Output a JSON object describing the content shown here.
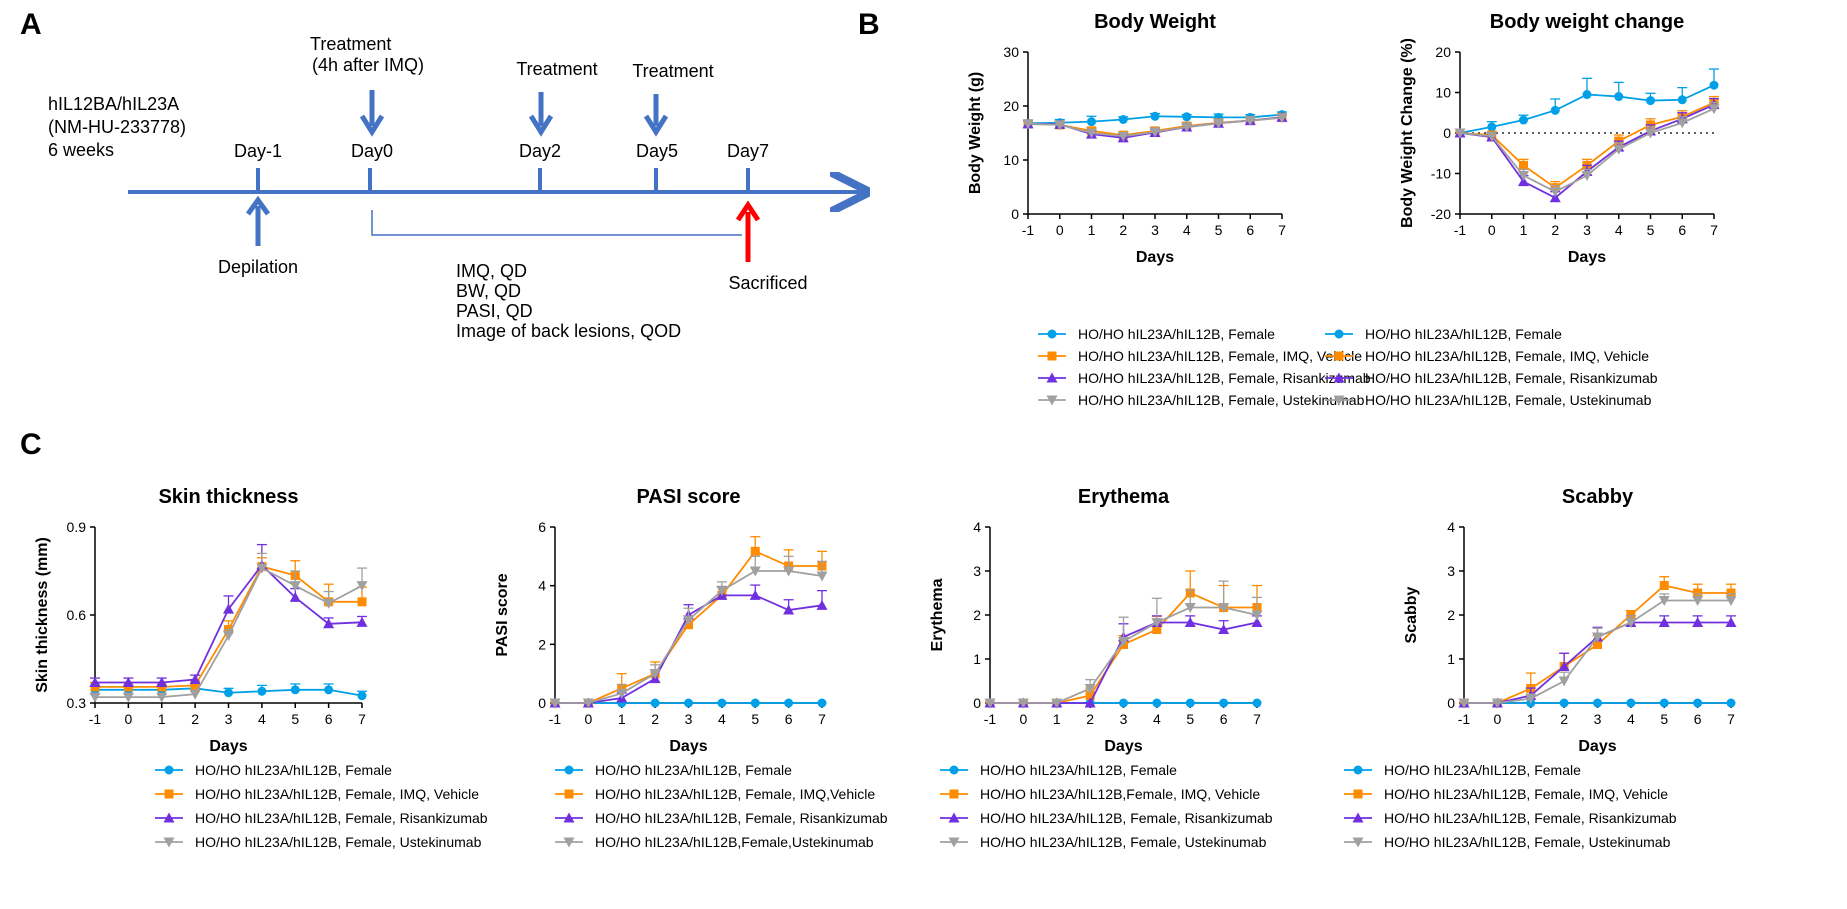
{
  "colors": {
    "timeline_blue": "#4472c4",
    "sacrificed_red": "#ff0000",
    "series": [
      "#00a0e9",
      "#ff8c00",
      "#7030e0",
      "#a0a0a0"
    ]
  },
  "markers": [
    "circle",
    "square",
    "triangle-up",
    "triangle-down"
  ],
  "panel_a": {
    "letter": "A",
    "model_lines": [
      "hIL12BA/hIL23A",
      "(NM-HU-233778)",
      "6 weeks"
    ],
    "days": [
      "Day-1",
      "Day0",
      "Day2",
      "Day5",
      "Day7"
    ],
    "treatments": [
      {
        "lines": [
          "Treatment",
          " (4h after IMQ)"
        ]
      },
      {
        "lines": [
          "Treatment"
        ]
      },
      {
        "lines": [
          "Treatment"
        ]
      }
    ],
    "depilation": "Depilation",
    "sacrificed": "Sacrificed",
    "protocol": [
      "IMQ, QD",
      "BW, QD",
      "PASI, QD",
      "Image of back lesions, QOD"
    ]
  },
  "panel_b_letter": "B",
  "panel_c_letter": "C",
  "chart_data": [
    {
      "type": "line",
      "title": "Body Weight",
      "xlabel": "Days",
      "ylabel": "Body Weight (g)",
      "x": [
        -1,
        0,
        1,
        2,
        3,
        4,
        5,
        6,
        7
      ],
      "xticks": [
        "-1",
        "0",
        "1",
        "2",
        "3",
        "4",
        "5",
        "6",
        "7"
      ],
      "ylim": [
        0,
        30
      ],
      "yticks": [
        "0",
        "10",
        "20",
        "30"
      ],
      "yticks_vals": [
        0,
        10,
        20,
        30
      ],
      "zero_line": false,
      "legend": "below",
      "series": [
        {
          "name": "HO/HO hIL23A/hIL12B, Female",
          "values": [
            16.8,
            16.9,
            17.1,
            17.5,
            18.1,
            18.0,
            17.9,
            17.9,
            18.4
          ],
          "err": [
            0.6,
            0.6,
            1.0,
            0.5,
            0.5,
            0.4,
            0.6,
            0.5,
            0.5
          ]
        },
        {
          "name": "HO/HO hIL23A/hIL12B, Female, IMQ, Vehicle",
          "values": [
            16.7,
            16.5,
            15.4,
            14.6,
            15.4,
            16.3,
            16.9,
            17.3,
            17.9
          ],
          "err": [
            0.5,
            0.5,
            0.6,
            0.6,
            0.6,
            0.5,
            0.5,
            0.5,
            0.5
          ]
        },
        {
          "name": "HO/HO hIL23A/hIL12B, Female, Risankizumab",
          "values": [
            16.7,
            16.6,
            14.8,
            14.1,
            15.1,
            16.1,
            16.8,
            17.3,
            17.9
          ],
          "err": [
            0.5,
            0.5,
            0.6,
            0.6,
            0.6,
            0.5,
            0.5,
            0.5,
            0.5
          ]
        },
        {
          "name": "HO/HO hIL23A/hIL12B, Female, Ustekinumab",
          "values": [
            16.7,
            16.5,
            15.0,
            14.4,
            15.2,
            16.1,
            16.8,
            17.3,
            17.8
          ],
          "err": [
            0.5,
            0.5,
            0.6,
            0.6,
            0.6,
            0.5,
            0.5,
            0.5,
            0.5
          ]
        }
      ]
    },
    {
      "type": "line",
      "title": "Body weight change",
      "xlabel": "Days",
      "ylabel": "Body Weight Change (%)",
      "x": [
        -1,
        0,
        1,
        2,
        3,
        4,
        5,
        6,
        7
      ],
      "xticks": [
        "-1",
        "0",
        "1",
        "2",
        "3",
        "4",
        "5",
        "6",
        "7"
      ],
      "ylim": [
        -20,
        20
      ],
      "yticks": [
        "-20",
        "-10",
        "0",
        "10",
        "20"
      ],
      "yticks_vals": [
        -20,
        -10,
        0,
        10,
        20
      ],
      "zero_line": true,
      "legend": "below",
      "series": [
        {
          "name": "HO/HO hIL23A/hIL12B, Female",
          "values": [
            0,
            1.5,
            3.2,
            5.6,
            9.5,
            9.0,
            8.0,
            8.2,
            11.8
          ],
          "err": [
            0,
            1.3,
            1.2,
            2.8,
            4.0,
            3.5,
            1.8,
            3.0,
            4.0
          ]
        },
        {
          "name": "HO/HO hIL23A/hIL12B, Female, IMQ, Vehicle",
          "values": [
            0,
            -0.5,
            -8.0,
            -13.5,
            -8.0,
            -2.0,
            2.0,
            4.0,
            7.5
          ],
          "err": [
            0,
            0.8,
            1.5,
            1.5,
            1.5,
            1.5,
            1.5,
            1.5,
            1.5
          ]
        },
        {
          "name": "HO/HO hIL23A/hIL12B, Female, Risankizumab",
          "values": [
            0,
            -1.0,
            -12.0,
            -16.0,
            -9.5,
            -3.5,
            0.5,
            3.5,
            7.0
          ],
          "err": [
            0,
            0.8,
            1.5,
            1.5,
            1.5,
            1.5,
            1.5,
            1.5,
            1.5
          ]
        },
        {
          "name": "HO/HO hIL23A/hIL12B, Female, Ustekinumab",
          "values": [
            0,
            -0.8,
            -10.5,
            -14.5,
            -10.5,
            -4.0,
            0.0,
            2.5,
            6.0
          ],
          "err": [
            0,
            0.8,
            1.5,
            1.5,
            1.5,
            1.5,
            1.5,
            1.5,
            1.5
          ]
        }
      ]
    },
    {
      "type": "line",
      "title": "Skin thickness",
      "xlabel": "Days",
      "ylabel": "Skin thickness (mm)",
      "x": [
        -1,
        0,
        1,
        2,
        3,
        4,
        5,
        6,
        7
      ],
      "xticks": [
        "-1",
        "0",
        "1",
        "2",
        "3",
        "4",
        "5",
        "6",
        "7"
      ],
      "ylim": [
        0.3,
        0.9
      ],
      "yticks": [
        "0.3",
        "0.6",
        "0.9"
      ],
      "yticks_vals": [
        0.3,
        0.6,
        0.9
      ],
      "zero_line": false,
      "legend": "below",
      "series": [
        {
          "name": "HO/HO hIL23A/hIL12B, Female",
          "values": [
            0.345,
            0.345,
            0.345,
            0.35,
            0.335,
            0.34,
            0.345,
            0.345,
            0.325
          ],
          "err": [
            0.015,
            0.015,
            0.015,
            0.015,
            0.015,
            0.02,
            0.02,
            0.02,
            0.015
          ]
        },
        {
          "name": "HO/HO hIL23A/hIL12B, Female, IMQ, Vehicle",
          "values": [
            0.355,
            0.355,
            0.355,
            0.36,
            0.55,
            0.765,
            0.735,
            0.645,
            0.645
          ],
          "err": [
            0.015,
            0.015,
            0.015,
            0.015,
            0.03,
            0.03,
            0.05,
            0.06,
            0.05
          ]
        },
        {
          "name": "HO/HO hIL23A/hIL12B, Female, Risankizumab",
          "values": [
            0.37,
            0.37,
            0.37,
            0.38,
            0.62,
            0.77,
            0.66,
            0.57,
            0.575
          ],
          "err": [
            0.015,
            0.015,
            0.015,
            0.015,
            0.045,
            0.07,
            0.03,
            0.02,
            0.02
          ]
        },
        {
          "name": "HO/HO hIL23A/hIL12B, Female, Ustekinumab",
          "values": [
            0.32,
            0.32,
            0.32,
            0.33,
            0.53,
            0.76,
            0.7,
            0.64,
            0.7
          ],
          "err": [
            0.01,
            0.01,
            0.01,
            0.01,
            0.02,
            0.05,
            0.05,
            0.04,
            0.06
          ]
        }
      ]
    },
    {
      "type": "line",
      "title": "PASI score",
      "xlabel": "Days",
      "ylabel": "PASI score",
      "x": [
        -1,
        0,
        1,
        2,
        3,
        4,
        5,
        6,
        7
      ],
      "xticks": [
        "-1",
        "0",
        "1",
        "2",
        "3",
        "4",
        "5",
        "6",
        "7"
      ],
      "ylim": [
        0,
        6
      ],
      "yticks": [
        "0",
        "2",
        "4",
        "6"
      ],
      "yticks_vals": [
        0,
        2,
        4,
        6
      ],
      "zero_line": false,
      "legend": "below",
      "series": [
        {
          "name": "HO/HO hIL23A/hIL12B, Female",
          "values": [
            0,
            0,
            0,
            0,
            0,
            0,
            0,
            0,
            0
          ],
          "err": [
            0,
            0,
            0,
            0,
            0,
            0,
            0,
            0,
            0
          ]
        },
        {
          "name": "HO/HO hIL23A/hIL12B, Female, IMQ,Vehicle",
          "values": [
            0,
            0,
            0.5,
            1.0,
            2.67,
            3.67,
            5.17,
            4.67,
            4.67
          ],
          "err": [
            0,
            0,
            0.5,
            0.4,
            0.3,
            0.3,
            0.5,
            0.55,
            0.5
          ]
        },
        {
          "name": "HO/HO hIL23A/hIL12B, Female, Risankizumab",
          "values": [
            0,
            0,
            0.17,
            0.83,
            3.0,
            3.67,
            3.67,
            3.17,
            3.33
          ],
          "err": [
            0,
            0,
            0.17,
            0.3,
            0.35,
            0.3,
            0.35,
            0.35,
            0.5
          ]
        },
        {
          "name": "HO/HO hIL23A/hIL12B,Female,Ustekinumab",
          "values": [
            0,
            0,
            0.33,
            1.0,
            2.83,
            3.83,
            4.5,
            4.5,
            4.33
          ],
          "err": [
            0,
            0,
            0.3,
            0.3,
            0.4,
            0.3,
            0.5,
            0.5,
            0.5
          ]
        }
      ]
    },
    {
      "type": "line",
      "title": "Erythema",
      "xlabel": "Days",
      "ylabel": "Erythema",
      "x": [
        -1,
        0,
        1,
        2,
        3,
        4,
        5,
        6,
        7
      ],
      "xticks": [
        "-1",
        "0",
        "1",
        "2",
        "3",
        "4",
        "5",
        "6",
        "7"
      ],
      "ylim": [
        0,
        4
      ],
      "yticks": [
        "0",
        "1",
        "2",
        "3",
        "4"
      ],
      "yticks_vals": [
        0,
        1,
        2,
        3,
        4
      ],
      "zero_line": false,
      "legend": "below",
      "series": [
        {
          "name": "HO/HO hIL23A/hIL12B, Female",
          "values": [
            0,
            0,
            0,
            0,
            0,
            0,
            0,
            0,
            0
          ],
          "err": [
            0,
            0,
            0,
            0,
            0,
            0,
            0,
            0,
            0
          ]
        },
        {
          "name": "HO/HO hIL23A/hIL12B,Female, IMQ, Vehicle",
          "values": [
            0,
            0,
            0,
            0.17,
            1.33,
            1.67,
            2.5,
            2.17,
            2.17
          ],
          "err": [
            0,
            0,
            0,
            0.17,
            0.2,
            0.3,
            0.5,
            0.5,
            0.5
          ]
        },
        {
          "name": "HO/HO hIL23A/hIL12B, Female, Risankizumab",
          "values": [
            0,
            0,
            0,
            0,
            1.5,
            1.83,
            1.83,
            1.67,
            1.83
          ],
          "err": [
            0,
            0,
            0,
            0,
            0.3,
            0.15,
            0.15,
            0.2,
            0.15
          ]
        },
        {
          "name": "HO/HO hIL23A/hIL12B, Female, Ustekinumab",
          "values": [
            0,
            0,
            0,
            0.33,
            1.4,
            1.83,
            2.17,
            2.17,
            2.0
          ],
          "err": [
            0,
            0,
            0,
            0.2,
            0.55,
            0.55,
            0.4,
            0.6,
            0.4
          ]
        }
      ]
    },
    {
      "type": "line",
      "title": "Scabby",
      "xlabel": "Days",
      "ylabel": "Scabby",
      "x": [
        -1,
        0,
        1,
        2,
        3,
        4,
        5,
        6,
        7
      ],
      "xticks": [
        "-1",
        "0",
        "1",
        "2",
        "3",
        "4",
        "5",
        "6",
        "7"
      ],
      "ylim": [
        0,
        4
      ],
      "yticks": [
        "0",
        "1",
        "2",
        "3",
        "4"
      ],
      "yticks_vals": [
        0,
        1,
        2,
        3,
        4
      ],
      "zero_line": false,
      "legend": "below",
      "series": [
        {
          "name": "HO/HO hIL23A/hIL12B, Female",
          "values": [
            0,
            0,
            0,
            0,
            0,
            0,
            0,
            0,
            0
          ],
          "err": [
            0,
            0,
            0,
            0,
            0,
            0,
            0,
            0,
            0
          ]
        },
        {
          "name": "HO/HO hIL23A/hIL12B, Female, IMQ, Vehicle",
          "values": [
            0,
            0,
            0.33,
            0.83,
            1.33,
            2.0,
            2.67,
            2.5,
            2.5
          ],
          "err": [
            0,
            0,
            0.35,
            0.3,
            0.2,
            0.1,
            0.2,
            0.2,
            0.2
          ]
        },
        {
          "name": "HO/HO hIL23A/hIL12B, Female, Risankizumab",
          "values": [
            0,
            0,
            0.17,
            0.83,
            1.5,
            1.83,
            1.83,
            1.83,
            1.83
          ],
          "err": [
            0,
            0,
            0.17,
            0.3,
            0.22,
            0.15,
            0.15,
            0.15,
            0.15
          ]
        },
        {
          "name": "HO/HO hIL23A/hIL12B, Female, Ustekinumab",
          "values": [
            0,
            0,
            0.1,
            0.5,
            1.5,
            1.83,
            2.33,
            2.33,
            2.33
          ],
          "err": [
            0,
            0,
            0.1,
            0.2,
            0.2,
            0.15,
            0.15,
            0.15,
            0.15
          ]
        }
      ]
    }
  ]
}
